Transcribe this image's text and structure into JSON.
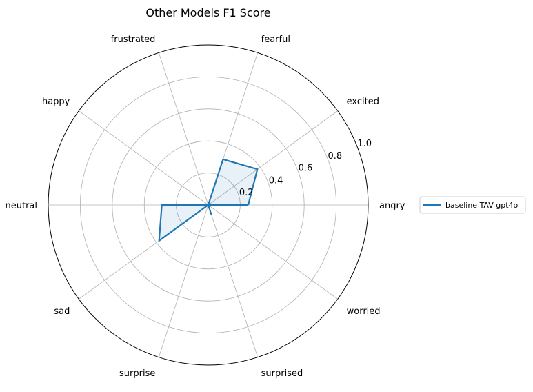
{
  "chart_data": {
    "type": "radar",
    "title": "Other Models F1 Score",
    "categories": [
      "angry",
      "excited",
      "fearful",
      "frustrated",
      "happy",
      "neutral",
      "sad",
      "surprise",
      "surprised",
      "worried"
    ],
    "radial_ticks": [
      "0.2",
      "0.4",
      "0.6",
      "0.8",
      "1.0"
    ],
    "rlim": [
      0,
      1.0
    ],
    "grid": true,
    "legend_position": "right",
    "series": [
      {
        "name": "baseline TAV gpt4o",
        "color": "#1f77b4",
        "fill_color": "#1f77b4",
        "values": [
          0.25,
          0.38,
          0.3,
          0.0,
          0.0,
          0.29,
          0.38,
          0.0,
          0.06,
          0.0
        ]
      }
    ]
  }
}
